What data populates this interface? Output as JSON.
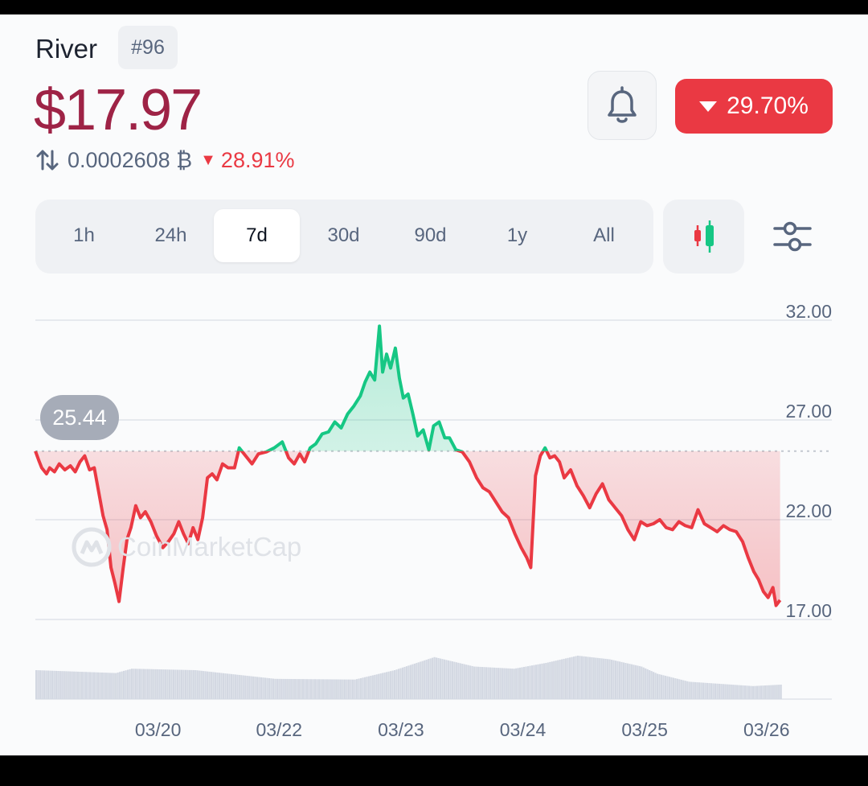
{
  "coin": {
    "name": "River",
    "rank": "#96",
    "price": "$17.97",
    "btc_price": "0.0002608 ₿",
    "btc_change": "28.91%",
    "change_24h": "29.70%"
  },
  "icons": {
    "swap": "swap-vertical-icon",
    "bell": "bell-icon",
    "candles": "candlestick-icon",
    "filter": "sliders-icon",
    "watermark": "coinmarketcap-logo"
  },
  "tabs": [
    {
      "label": "1h",
      "active": false
    },
    {
      "label": "24h",
      "active": false
    },
    {
      "label": "7d",
      "active": true
    },
    {
      "label": "30d",
      "active": false
    },
    {
      "label": "90d",
      "active": false
    },
    {
      "label": "1y",
      "active": false
    },
    {
      "label": "All",
      "active": false
    }
  ],
  "watermark": "CoinMarketCap",
  "colors": {
    "up": "#16c784",
    "down": "#ea3943",
    "price": "#9e2346"
  },
  "chart_data": {
    "type": "line",
    "start_value": "25.44",
    "baseline": 25.44,
    "ylim": [
      17,
      32
    ],
    "yticks": [
      "32.00",
      "27.00",
      "22.00",
      "17.00"
    ],
    "ytick_values": [
      32,
      27,
      22,
      17
    ],
    "xticks": [
      "03/20",
      "03/22",
      "03/23",
      "03/24",
      "03/25",
      "03/26"
    ],
    "xtick_pos": [
      0.154,
      0.306,
      0.459,
      0.612,
      0.765,
      0.918
    ],
    "points": [
      [
        0,
        25.44
      ],
      [
        0.004,
        25.0
      ],
      [
        0.008,
        24.6
      ],
      [
        0.014,
        24.3
      ],
      [
        0.018,
        24.6
      ],
      [
        0.024,
        24.4
      ],
      [
        0.03,
        24.8
      ],
      [
        0.037,
        24.5
      ],
      [
        0.044,
        24.7
      ],
      [
        0.05,
        24.4
      ],
      [
        0.056,
        24.9
      ],
      [
        0.062,
        25.2
      ],
      [
        0.068,
        24.5
      ],
      [
        0.074,
        24.6
      ],
      [
        0.079,
        23.5
      ],
      [
        0.085,
        22.2
      ],
      [
        0.09,
        21.5
      ],
      [
        0.095,
        19.6
      ],
      [
        0.1,
        18.8
      ],
      [
        0.105,
        17.9
      ],
      [
        0.11,
        19.5
      ],
      [
        0.115,
        21.0
      ],
      [
        0.12,
        21.6
      ],
      [
        0.126,
        22.7
      ],
      [
        0.132,
        22.1
      ],
      [
        0.138,
        22.4
      ],
      [
        0.145,
        21.9
      ],
      [
        0.152,
        21.2
      ],
      [
        0.16,
        20.6
      ],
      [
        0.167,
        20.9
      ],
      [
        0.174,
        21.3
      ],
      [
        0.18,
        21.9
      ],
      [
        0.186,
        21.3
      ],
      [
        0.192,
        20.8
      ],
      [
        0.198,
        21.6
      ],
      [
        0.204,
        21.0
      ],
      [
        0.21,
        22.1
      ],
      [
        0.216,
        24.1
      ],
      [
        0.222,
        24.3
      ],
      [
        0.228,
        24.0
      ],
      [
        0.235,
        24.8
      ],
      [
        0.242,
        24.6
      ],
      [
        0.25,
        24.6
      ],
      [
        0.256,
        25.6
      ],
      [
        0.264,
        25.2
      ],
      [
        0.272,
        24.8
      ],
      [
        0.28,
        25.3
      ],
      [
        0.29,
        25.4
      ],
      [
        0.3,
        25.6
      ],
      [
        0.31,
        25.9
      ],
      [
        0.318,
        25.1
      ],
      [
        0.325,
        24.8
      ],
      [
        0.332,
        25.3
      ],
      [
        0.338,
        24.9
      ],
      [
        0.345,
        25.6
      ],
      [
        0.352,
        25.8
      ],
      [
        0.36,
        26.3
      ],
      [
        0.368,
        26.4
      ],
      [
        0.376,
        26.9
      ],
      [
        0.384,
        26.6
      ],
      [
        0.392,
        27.3
      ],
      [
        0.4,
        27.7
      ],
      [
        0.408,
        28.2
      ],
      [
        0.414,
        28.9
      ],
      [
        0.42,
        29.4
      ],
      [
        0.426,
        29.0
      ],
      [
        0.432,
        31.7
      ],
      [
        0.436,
        29.4
      ],
      [
        0.441,
        30.3
      ],
      [
        0.446,
        29.6
      ],
      [
        0.452,
        30.6
      ],
      [
        0.457,
        29.1
      ],
      [
        0.462,
        28.1
      ],
      [
        0.468,
        28.3
      ],
      [
        0.474,
        27.3
      ],
      [
        0.48,
        26.2
      ],
      [
        0.487,
        26.5
      ],
      [
        0.494,
        25.5
      ],
      [
        0.5,
        26.7
      ],
      [
        0.507,
        26.9
      ],
      [
        0.514,
        26.1
      ],
      [
        0.52,
        26.1
      ],
      [
        0.528,
        25.5
      ],
      [
        0.536,
        25.4
      ],
      [
        0.545,
        24.9
      ],
      [
        0.554,
        24.1
      ],
      [
        0.562,
        23.6
      ],
      [
        0.57,
        23.4
      ],
      [
        0.578,
        22.9
      ],
      [
        0.586,
        22.4
      ],
      [
        0.594,
        22.1
      ],
      [
        0.602,
        21.3
      ],
      [
        0.61,
        20.6
      ],
      [
        0.617,
        20.1
      ],
      [
        0.622,
        19.6
      ],
      [
        0.628,
        24.2
      ],
      [
        0.634,
        25.2
      ],
      [
        0.64,
        25.6
      ],
      [
        0.646,
        25.1
      ],
      [
        0.652,
        25.2
      ],
      [
        0.658,
        24.9
      ],
      [
        0.664,
        24.1
      ],
      [
        0.672,
        24.5
      ],
      [
        0.68,
        23.7
      ],
      [
        0.688,
        23.2
      ],
      [
        0.696,
        22.6
      ],
      [
        0.704,
        23.3
      ],
      [
        0.712,
        23.8
      ],
      [
        0.72,
        23.0
      ],
      [
        0.728,
        22.6
      ],
      [
        0.736,
        22.2
      ],
      [
        0.744,
        21.5
      ],
      [
        0.752,
        21.0
      ],
      [
        0.76,
        21.9
      ],
      [
        0.768,
        21.7
      ],
      [
        0.776,
        21.8
      ],
      [
        0.784,
        22.0
      ],
      [
        0.792,
        21.6
      ],
      [
        0.8,
        21.5
      ],
      [
        0.808,
        21.9
      ],
      [
        0.816,
        21.7
      ],
      [
        0.824,
        21.6
      ],
      [
        0.832,
        22.5
      ],
      [
        0.84,
        21.8
      ],
      [
        0.848,
        21.6
      ],
      [
        0.856,
        21.4
      ],
      [
        0.864,
        21.7
      ],
      [
        0.872,
        21.5
      ],
      [
        0.88,
        21.4
      ],
      [
        0.888,
        20.9
      ],
      [
        0.895,
        20.1
      ],
      [
        0.902,
        19.4
      ],
      [
        0.908,
        19.0
      ],
      [
        0.914,
        18.4
      ],
      [
        0.92,
        18.1
      ],
      [
        0.926,
        18.6
      ],
      [
        0.93,
        17.7
      ],
      [
        0.935,
        17.97
      ]
    ],
    "volume": [
      [
        0,
        0.4
      ],
      [
        0.1,
        0.36
      ],
      [
        0.12,
        0.42
      ],
      [
        0.2,
        0.4
      ],
      [
        0.3,
        0.28
      ],
      [
        0.4,
        0.27
      ],
      [
        0.45,
        0.4
      ],
      [
        0.5,
        0.58
      ],
      [
        0.55,
        0.45
      ],
      [
        0.6,
        0.42
      ],
      [
        0.64,
        0.5
      ],
      [
        0.68,
        0.6
      ],
      [
        0.72,
        0.55
      ],
      [
        0.76,
        0.45
      ],
      [
        0.78,
        0.35
      ],
      [
        0.82,
        0.24
      ],
      [
        0.9,
        0.18
      ],
      [
        0.935,
        0.2
      ]
    ]
  }
}
